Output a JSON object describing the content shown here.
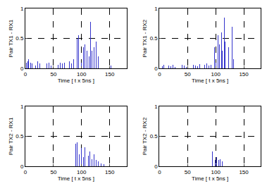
{
  "chart_data": [
    {
      "type": "bar",
      "y_label": "Pair TX1 - RX1",
      "x_label": "Time [ t x 5ns ]",
      "color": "#3333cc",
      "grid": true,
      "xlim": [
        0,
        180
      ],
      "xticks": [
        0,
        50,
        100,
        150
      ],
      "ylim": [
        0,
        1
      ],
      "yticks": [
        0,
        0.5,
        1
      ],
      "x": [
        2,
        4,
        6,
        9,
        12,
        15,
        18,
        22,
        26,
        30,
        34,
        38,
        42,
        46,
        50,
        54,
        58,
        62,
        66,
        70,
        74,
        78,
        82,
        86,
        92,
        95,
        100,
        103,
        106,
        110,
        113,
        116,
        118,
        122,
        126,
        130,
        134,
        138,
        143,
        148,
        152,
        158
      ],
      "values": [
        0.1,
        0.12,
        0.15,
        0.1,
        0.08,
        0.1,
        0.05,
        0.12,
        0.08,
        0.1,
        0.06,
        0.08,
        0.1,
        0.05,
        0.08,
        0.12,
        0.06,
        0.1,
        0.08,
        0.1,
        0.05,
        0.12,
        0.08,
        0.15,
        0.5,
        0.55,
        0.1,
        0.35,
        0.4,
        0.3,
        0.2,
        0.78,
        0.3,
        0.35,
        0.45,
        0.2,
        0.25,
        0.1,
        0.05,
        0.1,
        0.05,
        0.03
      ]
    },
    {
      "type": "bar",
      "y_label": "Pair TX1 - RX2",
      "x_label": "Time [ t x 5ns ]",
      "color": "#3333cc",
      "grid": true,
      "xlim": [
        0,
        180
      ],
      "xticks": [
        0,
        50,
        100,
        150
      ],
      "ylim": [
        0,
        1
      ],
      "yticks": [
        0,
        0.5,
        1
      ],
      "x": [
        2,
        5,
        8,
        12,
        16,
        20,
        24,
        28,
        32,
        36,
        40,
        44,
        48,
        52,
        56,
        60,
        64,
        68,
        72,
        76,
        80,
        84,
        88,
        92,
        98,
        100,
        104,
        107,
        110,
        112,
        115,
        117,
        120,
        123,
        126,
        129,
        132,
        136,
        140,
        145,
        150,
        155
      ],
      "values": [
        0.05,
        0.04,
        0.06,
        0.03,
        0.05,
        0.04,
        0.06,
        0.03,
        0.05,
        0.04,
        0.06,
        0.05,
        0.03,
        0.05,
        0.04,
        0.06,
        0.05,
        0.04,
        0.07,
        0.05,
        0.06,
        0.08,
        0.05,
        0.06,
        0.35,
        0.1,
        0.55,
        0.4,
        0.6,
        0.3,
        0.85,
        0.45,
        0.6,
        0.35,
        0.2,
        0.7,
        0.15,
        0.1,
        0.3,
        0.45,
        0.05,
        0.02
      ]
    },
    {
      "type": "bar",
      "y_label": "Pair TX2 - RX1",
      "x_label": "Time [ t x 5ns ]",
      "color": "#3333cc",
      "grid": true,
      "xlim": [
        0,
        180
      ],
      "xticks": [
        0,
        50,
        100,
        150
      ],
      "ylim": [
        0,
        1
      ],
      "yticks": [
        0,
        0.5,
        1
      ],
      "x": [
        90,
        92,
        96,
        100,
        103,
        106,
        109,
        112,
        115,
        118,
        122,
        126,
        130,
        135,
        140,
        150
      ],
      "values": [
        0.38,
        0.4,
        0.2,
        0.3,
        0.15,
        0.32,
        0.2,
        0.18,
        0.25,
        0.12,
        0.2,
        0.1,
        0.08,
        0.05,
        0.03,
        0.02
      ]
    },
    {
      "type": "bar",
      "y_label": "Pair TX2 - RX2",
      "x_label": "Time [ t x 5ns ]",
      "color": "#3333cc",
      "grid": true,
      "xlim": [
        0,
        180
      ],
      "xticks": [
        0,
        50,
        100,
        150
      ],
      "ylim": [
        0,
        1
      ],
      "yticks": [
        0,
        0.5,
        1
      ],
      "x": [
        94,
        96,
        99,
        102,
        105,
        108,
        112,
        116,
        120,
        125,
        130,
        135,
        145,
        150
      ],
      "values": [
        0.25,
        0.2,
        0.1,
        0.15,
        0.1,
        0.12,
        0.08,
        0.1,
        0.06,
        0.08,
        0.05,
        0.03,
        0.04,
        0.02
      ]
    }
  ]
}
